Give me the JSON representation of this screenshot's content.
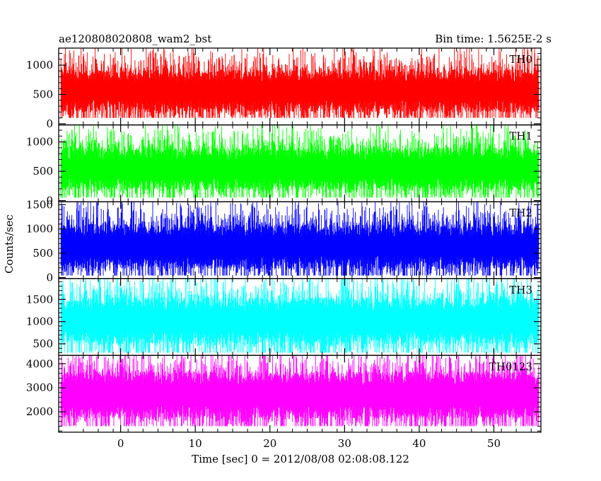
{
  "header": {
    "title": "ae120808020808_wam2_bst",
    "bin_time": "Bin time: 1.5625E-2 s"
  },
  "axes": {
    "xlabel": "Time [sec] 0 = 2012/08/08 02:08:08.122",
    "ylabel": "Counts/sec"
  },
  "chart_data": {
    "type": "line",
    "x_range": [
      -8.3,
      56.3
    ],
    "data_x_range": [
      -8.0,
      56.0
    ],
    "bin_time_sec": 0.015625,
    "x_ticks": [
      0,
      10,
      20,
      30,
      40,
      50
    ],
    "x_tick_labels": [
      "0",
      "10",
      "20",
      "30",
      "40",
      "50"
    ],
    "series": [
      {
        "name": "TH0",
        "color": "#ff0000",
        "ylim": [
          -20,
          1290
        ],
        "ticks": [
          0,
          500,
          1000
        ],
        "tick_labels": [
          "0",
          "500",
          "1000"
        ],
        "baseline": 560,
        "min": 100,
        "max": 1290,
        "spread": 260
      },
      {
        "name": "TH1",
        "color": "#00ff00",
        "ylim": [
          -20,
          1290
        ],
        "ticks": [
          0,
          500,
          1000
        ],
        "tick_labels": [
          "0",
          "500",
          "1000"
        ],
        "baseline": 540,
        "min": 50,
        "max": 1290,
        "spread": 260
      },
      {
        "name": "TH2",
        "color": "#0000ff",
        "ylim": [
          -20,
          1560
        ],
        "ticks": [
          0,
          500,
          1000,
          1500
        ],
        "tick_labels": [
          "0",
          "500",
          "1000",
          "1500"
        ],
        "baseline": 640,
        "min": 40,
        "max": 1560,
        "spread": 330
      },
      {
        "name": "TH3",
        "color": "#00ffff",
        "ylim": [
          240,
          1970
        ],
        "ticks": [
          500,
          1000,
          1500
        ],
        "tick_labels": [
          "500",
          "1000",
          "1500"
        ],
        "baseline": 1020,
        "min": 300,
        "max": 1970,
        "spread": 380
      },
      {
        "name": "TH0123",
        "color": "#ff00ff",
        "ylim": [
          1150,
          4350
        ],
        "ticks": [
          2000,
          3000,
          4000
        ],
        "tick_labels": [
          "2000",
          "3000",
          "4000"
        ],
        "baseline": 2700,
        "min": 1400,
        "max": 4350,
        "spread": 700
      }
    ]
  }
}
